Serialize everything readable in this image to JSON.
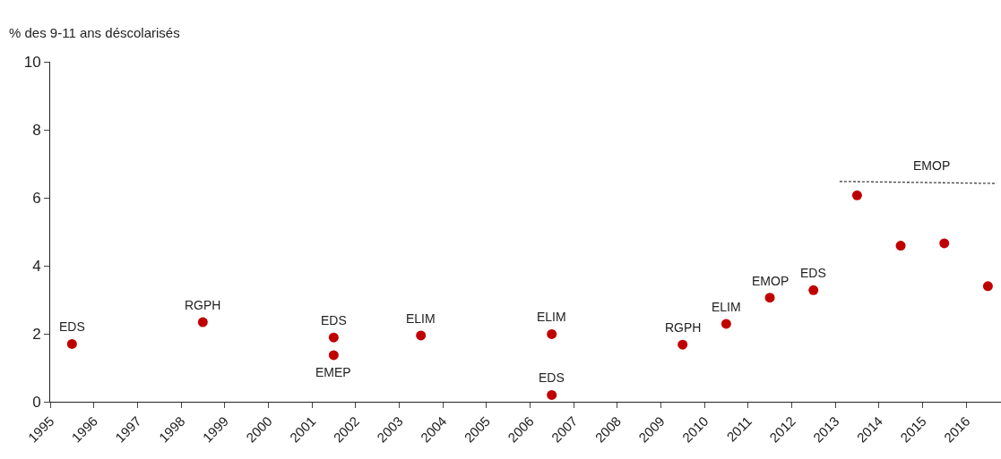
{
  "chart_data": {
    "type": "scatter",
    "ylabel": "% des 9-11 ans déscolarisés",
    "xlim": [
      1995,
      2016.8
    ],
    "xticks": [
      1995,
      1996,
      1997,
      1998,
      1999,
      2000,
      2001,
      2002,
      2003,
      2004,
      2005,
      2006,
      2007,
      2008,
      2009,
      2010,
      2011,
      2012,
      2013,
      2014,
      2015,
      2016
    ],
    "ylim": [
      0,
      10
    ],
    "yticks": [
      0,
      2,
      4,
      6,
      8,
      10
    ],
    "series": [
      {
        "marker": "circle",
        "color": "#c00000",
        "x": [
          1995.5,
          1998.5,
          2001.5,
          2001.5,
          2003.5,
          2006.5,
          2006.5,
          2009.5,
          2010.5,
          2011.5,
          2012.5,
          2013.5,
          2014.5,
          2015.5,
          2016.5
        ],
        "values": [
          1.7,
          2.34,
          1.89,
          1.37,
          1.95,
          1.99,
          0.2,
          1.68,
          2.29,
          3.06,
          3.28,
          6.07,
          4.59,
          4.66,
          3.4
        ]
      },
      {
        "type": "line",
        "color": "#404040",
        "line_style": "dashed",
        "x": [
          2013.1,
          2016.7
        ],
        "values": [
          6.48,
          6.42
        ]
      }
    ],
    "annotations": [
      {
        "text": "EDS",
        "x": 1995.5,
        "y": 1.7
      },
      {
        "text": "RGPH",
        "x": 1998.5,
        "y": 2.34
      },
      {
        "text": "EDS",
        "x": 2001.5,
        "y": 1.89
      },
      {
        "text": "EMEP",
        "x": 2001.5,
        "y": 1.37
      },
      {
        "text": "ELIM",
        "x": 2003.5,
        "y": 1.95
      },
      {
        "text": "ELIM",
        "x": 2006.5,
        "y": 1.99
      },
      {
        "text": "EDS",
        "x": 2006.5,
        "y": 0.2
      },
      {
        "text": "RGPH",
        "x": 2009.5,
        "y": 1.68
      },
      {
        "text": "ELIM",
        "x": 2010.5,
        "y": 2.29
      },
      {
        "text": "EMOP",
        "x": 2011.5,
        "y": 3.06
      },
      {
        "text": "EDS",
        "x": 2012.5,
        "y": 3.28
      },
      {
        "text": "EMOP",
        "x": 2015.2,
        "y": 6.45
      }
    ]
  }
}
